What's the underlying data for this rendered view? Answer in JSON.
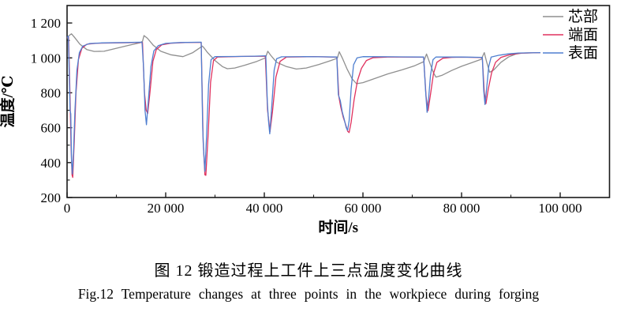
{
  "figure": {
    "caption_zh": "图 12  锻造过程上工件上三点温度变化曲线",
    "caption_en": "Fig.12  Temperature changes at three points in the workpiece during forging"
  },
  "chart_data": {
    "type": "line",
    "title": "",
    "xlabel": "时间/s",
    "ylabel": "温度/℃",
    "xlim": [
      0,
      110000
    ],
    "ylim": [
      200,
      1300
    ],
    "grid": false,
    "legend_position": "top-right",
    "axis_color": "#1a1a1a",
    "x_ticks": [
      {
        "value": 0,
        "label": "0"
      },
      {
        "value": 20000,
        "label": "20 000"
      },
      {
        "value": 40000,
        "label": "40 000"
      },
      {
        "value": 60000,
        "label": "60 000"
      },
      {
        "value": 80000,
        "label": "80 000"
      },
      {
        "value": 100000,
        "label": "100 000"
      }
    ],
    "y_ticks": [
      {
        "value": 200,
        "label": "200"
      },
      {
        "value": 400,
        "label": "400"
      },
      {
        "value": 600,
        "label": "600"
      },
      {
        "value": 800,
        "label": "800"
      },
      {
        "value": 1000,
        "label": "1 000"
      },
      {
        "value": 1200,
        "label": "1 200"
      }
    ],
    "x_minor_ticks": [
      10000,
      30000,
      50000,
      70000,
      90000
    ],
    "y_minor_ticks": [
      300,
      500,
      700,
      900,
      1100
    ],
    "series": [
      {
        "key": "core",
        "name": "芯部",
        "color": "#8f8f8f",
        "points": [
          [
            0,
            1112
          ],
          [
            400,
            1128
          ],
          [
            900,
            1138
          ],
          [
            1500,
            1118
          ],
          [
            2600,
            1078
          ],
          [
            4000,
            1048
          ],
          [
            5500,
            1037
          ],
          [
            7500,
            1038
          ],
          [
            10000,
            1055
          ],
          [
            12500,
            1072
          ],
          [
            14800,
            1087
          ],
          [
            15300,
            1095
          ],
          [
            15600,
            1128
          ],
          [
            16300,
            1112
          ],
          [
            17500,
            1072
          ],
          [
            19000,
            1038
          ],
          [
            21000,
            1018
          ],
          [
            23500,
            1007
          ],
          [
            25500,
            1030
          ],
          [
            26800,
            1055
          ],
          [
            27400,
            1068
          ],
          [
            27700,
            1060
          ],
          [
            28500,
            1030
          ],
          [
            30000,
            985
          ],
          [
            31500,
            950
          ],
          [
            32500,
            938
          ],
          [
            34000,
            942
          ],
          [
            36000,
            958
          ],
          [
            38500,
            980
          ],
          [
            40200,
            1000
          ],
          [
            40700,
            1038
          ],
          [
            41300,
            1015
          ],
          [
            42500,
            975
          ],
          [
            44500,
            950
          ],
          [
            46500,
            936
          ],
          [
            48500,
            942
          ],
          [
            51000,
            962
          ],
          [
            53500,
            985
          ],
          [
            54800,
            998
          ],
          [
            55200,
            1035
          ],
          [
            55800,
            1000
          ],
          [
            56800,
            935
          ],
          [
            57800,
            880
          ],
          [
            58700,
            852
          ],
          [
            60000,
            858
          ],
          [
            62000,
            878
          ],
          [
            65000,
            908
          ],
          [
            68000,
            932
          ],
          [
            70500,
            955
          ],
          [
            72300,
            978
          ],
          [
            72900,
            1022
          ],
          [
            73500,
            975
          ],
          [
            74300,
            915
          ],
          [
            74800,
            890
          ],
          [
            76000,
            900
          ],
          [
            78000,
            928
          ],
          [
            80000,
            952
          ],
          [
            82000,
            972
          ],
          [
            84000,
            992
          ],
          [
            84600,
            1030
          ],
          [
            85100,
            975
          ],
          [
            85700,
            918
          ],
          [
            86500,
            930
          ],
          [
            88000,
            975
          ],
          [
            89500,
            1005
          ],
          [
            91000,
            1022
          ],
          [
            92500,
            1028
          ],
          [
            96000,
            1030
          ]
        ]
      },
      {
        "key": "end-face",
        "name": "端面",
        "color": "#e0315e",
        "points": [
          [
            0,
            1116
          ],
          [
            300,
            1120
          ],
          [
            550,
            850
          ],
          [
            800,
            500
          ],
          [
            1000,
            330
          ],
          [
            1150,
            315
          ],
          [
            1450,
            520
          ],
          [
            1800,
            800
          ],
          [
            2300,
            990
          ],
          [
            3000,
            1055
          ],
          [
            4000,
            1078
          ],
          [
            6000,
            1084
          ],
          [
            12000,
            1087
          ],
          [
            15300,
            1089
          ],
          [
            15700,
            800
          ],
          [
            16050,
            700
          ],
          [
            16350,
            682
          ],
          [
            16800,
            800
          ],
          [
            17400,
            980
          ],
          [
            18100,
            1048
          ],
          [
            19200,
            1075
          ],
          [
            21000,
            1084
          ],
          [
            24000,
            1088
          ],
          [
            27200,
            1089
          ],
          [
            27600,
            520
          ],
          [
            27950,
            330
          ],
          [
            28150,
            327
          ],
          [
            28600,
            560
          ],
          [
            29100,
            860
          ],
          [
            29700,
            985
          ],
          [
            30500,
            1005
          ],
          [
            35000,
            1008
          ],
          [
            40200,
            1010
          ],
          [
            40650,
            700
          ],
          [
            41150,
            577
          ],
          [
            41650,
            690
          ],
          [
            42350,
            890
          ],
          [
            43200,
            980
          ],
          [
            44500,
            1005
          ],
          [
            50000,
            1007
          ],
          [
            54700,
            1004
          ],
          [
            55100,
            780
          ],
          [
            55500,
            718
          ],
          [
            56000,
            660
          ],
          [
            56500,
            618
          ],
          [
            56900,
            580
          ],
          [
            57200,
            572
          ],
          [
            57600,
            630
          ],
          [
            58200,
            760
          ],
          [
            58900,
            870
          ],
          [
            59700,
            940
          ],
          [
            60700,
            985
          ],
          [
            62000,
            1001
          ],
          [
            65000,
            1005
          ],
          [
            72300,
            1004
          ],
          [
            72800,
            780
          ],
          [
            73200,
            697
          ],
          [
            73700,
            790
          ],
          [
            74300,
            910
          ],
          [
            75000,
            975
          ],
          [
            76200,
            998
          ],
          [
            78000,
            1003
          ],
          [
            80000,
            1004
          ],
          [
            84200,
            1002
          ],
          [
            84600,
            800
          ],
          [
            84950,
            738
          ],
          [
            85400,
            820
          ],
          [
            86100,
            915
          ],
          [
            86900,
            975
          ],
          [
            88000,
            1003
          ],
          [
            89800,
            1018
          ],
          [
            91800,
            1027
          ],
          [
            96000,
            1030
          ]
        ]
      },
      {
        "key": "surface",
        "name": "表面",
        "color": "#4f7fd0",
        "points": [
          [
            0,
            1118
          ],
          [
            250,
            1124
          ],
          [
            450,
            900
          ],
          [
            600,
            700
          ],
          [
            750,
            680
          ],
          [
            900,
            420
          ],
          [
            1050,
            335
          ],
          [
            1300,
            450
          ],
          [
            1600,
            700
          ],
          [
            2000,
            930
          ],
          [
            2500,
            1030
          ],
          [
            3200,
            1068
          ],
          [
            4500,
            1082
          ],
          [
            7000,
            1086
          ],
          [
            12000,
            1088
          ],
          [
            15200,
            1090
          ],
          [
            15500,
            950
          ],
          [
            15800,
            700
          ],
          [
            16100,
            617
          ],
          [
            16500,
            760
          ],
          [
            17000,
            950
          ],
          [
            17600,
            1040
          ],
          [
            18500,
            1070
          ],
          [
            20000,
            1083
          ],
          [
            23000,
            1088
          ],
          [
            27200,
            1090
          ],
          [
            27500,
            600
          ],
          [
            27700,
            470
          ],
          [
            27950,
            350
          ],
          [
            28300,
            560
          ],
          [
            28700,
            850
          ],
          [
            29200,
            990
          ],
          [
            30000,
            1007
          ],
          [
            34000,
            1008
          ],
          [
            38000,
            1010
          ],
          [
            40300,
            1012
          ],
          [
            40600,
            750
          ],
          [
            40850,
            640
          ],
          [
            41100,
            565
          ],
          [
            41500,
            720
          ],
          [
            42000,
            930
          ],
          [
            42500,
            995
          ],
          [
            43500,
            1006
          ],
          [
            48000,
            1007
          ],
          [
            52000,
            1006
          ],
          [
            54700,
            1005
          ],
          [
            55000,
            790
          ],
          [
            55400,
            755
          ],
          [
            55800,
            690
          ],
          [
            56200,
            648
          ],
          [
            56600,
            600
          ],
          [
            56900,
            585
          ],
          [
            57200,
            640
          ],
          [
            57600,
            820
          ],
          [
            58100,
            960
          ],
          [
            58800,
            1000
          ],
          [
            60000,
            1007
          ],
          [
            66000,
            1006
          ],
          [
            72300,
            1005
          ],
          [
            72700,
            810
          ],
          [
            73000,
            688
          ],
          [
            73300,
            760
          ],
          [
            73700,
            900
          ],
          [
            74200,
            990
          ],
          [
            74800,
            1005
          ],
          [
            80000,
            1005
          ],
          [
            84200,
            1003
          ],
          [
            84500,
            810
          ],
          [
            84750,
            733
          ],
          [
            85100,
            830
          ],
          [
            85500,
            950
          ],
          [
            86000,
            1005
          ],
          [
            87500,
            1015
          ],
          [
            89500,
            1023
          ],
          [
            91500,
            1028
          ],
          [
            96000,
            1030
          ]
        ]
      }
    ]
  }
}
